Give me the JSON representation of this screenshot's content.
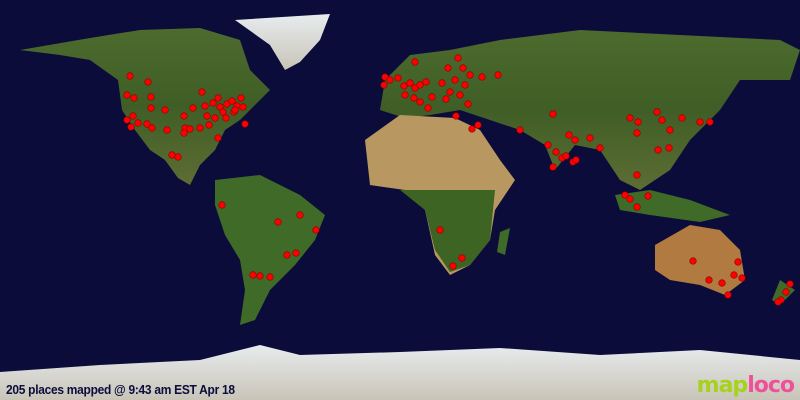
{
  "map": {
    "caption": "205 places mapped @ 9:43 am EST Apr 18",
    "logo": {
      "part1": "map",
      "part2": "loco"
    },
    "marker_color": "#ff0000",
    "ocean_color": "#0b0c3a"
  }
}
